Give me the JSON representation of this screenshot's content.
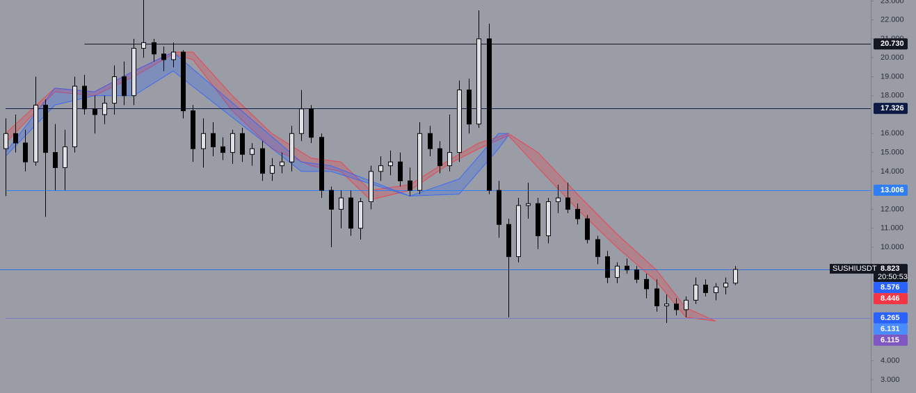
{
  "chart_data": {
    "type": "candlestick",
    "symbol": "SUSHIUSDT",
    "countdown": "20:50:53",
    "ylim": [
      2.3,
      23.05
    ],
    "yticks": [
      {
        "value": 23,
        "label": "23.000"
      },
      {
        "value": 22,
        "label": "22.000"
      },
      {
        "value": 21,
        "label": "21.000"
      },
      {
        "value": 20,
        "label": "20.000"
      },
      {
        "value": 19,
        "label": "19.000"
      },
      {
        "value": 18,
        "label": "18.000"
      },
      {
        "value": 16,
        "label": "16.000"
      },
      {
        "value": 15,
        "label": "15.000"
      },
      {
        "value": 14,
        "label": "14.000"
      },
      {
        "value": 12,
        "label": "12.000"
      },
      {
        "value": 11,
        "label": "11.000"
      },
      {
        "value": 10,
        "label": "10.000"
      },
      {
        "value": 4,
        "label": "4.000"
      },
      {
        "value": 3,
        "label": "3.000"
      }
    ],
    "up_color": "#dfe1e6",
    "down_color": "#000000",
    "candles": {
      "open": [
        15.2,
        16.0,
        15.5,
        14.5,
        17.5,
        15.0,
        14.2,
        15.3,
        18.5,
        17.3,
        17.0,
        17.6,
        19.0,
        18.0,
        20.5,
        20.8,
        20.2,
        19.9,
        20.3,
        17.2,
        15.2,
        16.0,
        15.3,
        15.0,
        16.0,
        14.9,
        15.2,
        13.9,
        14.3,
        14.5,
        16.0,
        17.3,
        15.8,
        13.0,
        12.0,
        12.6,
        11.0,
        12.4,
        14.0,
        14.3,
        14.5,
        13.5,
        13.0,
        16.0,
        15.2,
        14.3,
        15.0,
        18.3,
        16.5,
        21.0,
        13.0,
        11.2,
        9.5,
        12.2,
        12.3,
        10.6,
        12.4,
        12.6,
        12.0,
        11.5,
        10.4,
        9.5,
        8.4,
        9.0,
        8.8,
        8.3,
        7.8,
        6.9,
        7.0,
        6.7,
        7.2,
        8.0,
        7.6,
        7.9,
        8.1
      ],
      "high": [
        16.8,
        17.0,
        16.2,
        19.0,
        17.8,
        16.5,
        16.2,
        19.0,
        19.1,
        18.0,
        18.0,
        19.6,
        19.8,
        21.0,
        23.1,
        21.0,
        20.6,
        20.8,
        20.4,
        17.5,
        16.8,
        16.6,
        15.8,
        16.2,
        16.3,
        15.5,
        15.6,
        14.7,
        15.0,
        16.4,
        18.3,
        17.5,
        16.0,
        13.2,
        13.0,
        13.0,
        12.6,
        14.3,
        14.8,
        15.1,
        15.0,
        14.2,
        16.6,
        16.4,
        15.6,
        17.0,
        18.8,
        18.9,
        22.5,
        21.8,
        13.5,
        11.5,
        12.6,
        13.4,
        12.6,
        12.6,
        13.3,
        13.4,
        12.3,
        11.7,
        10.6,
        9.8,
        9.2,
        9.4,
        9.0,
        8.6,
        8.3,
        7.5,
        7.3,
        7.4,
        8.4,
        8.3,
        8.1,
        8.4,
        9.0
      ],
      "low": [
        12.7,
        15.0,
        14.0,
        14.3,
        11.6,
        13.0,
        13.0,
        15.0,
        17.0,
        16.0,
        16.5,
        17.0,
        17.5,
        17.5,
        20.0,
        19.8,
        19.3,
        19.5,
        16.8,
        14.5,
        14.2,
        14.8,
        14.6,
        14.4,
        14.5,
        14.3,
        13.5,
        13.5,
        13.9,
        14.0,
        15.6,
        15.5,
        12.6,
        10.0,
        11.0,
        10.6,
        10.4,
        12.0,
        13.5,
        13.8,
        13.2,
        12.7,
        12.8,
        14.8,
        13.9,
        14.0,
        14.5,
        16.0,
        16.3,
        12.8,
        10.5,
        6.3,
        9.2,
        11.5,
        9.9,
        10.2,
        11.8,
        11.8,
        11.2,
        10.2,
        9.1,
        8.1,
        8.1,
        8.6,
        8.1,
        7.3,
        6.6,
        6.0,
        6.4,
        6.3,
        7.0,
        7.4,
        7.2,
        7.5,
        8.0
      ],
      "close": [
        16.0,
        15.5,
        14.5,
        17.5,
        15.0,
        14.2,
        15.3,
        18.5,
        17.3,
        17.0,
        17.6,
        19.0,
        18.0,
        20.5,
        20.8,
        20.2,
        19.9,
        20.3,
        17.2,
        15.2,
        16.0,
        15.3,
        15.0,
        16.0,
        14.9,
        15.2,
        13.9,
        14.3,
        14.5,
        16.0,
        17.3,
        15.8,
        13.0,
        12.0,
        12.6,
        11.0,
        12.4,
        14.0,
        14.3,
        14.5,
        13.5,
        13.0,
        16.0,
        15.2,
        14.3,
        15.0,
        18.3,
        16.5,
        21.0,
        13.0,
        11.2,
        9.5,
        12.2,
        12.3,
        10.6,
        12.4,
        12.6,
        12.0,
        11.5,
        10.4,
        9.5,
        8.4,
        9.0,
        8.8,
        8.3,
        7.8,
        6.9,
        7.0,
        6.7,
        7.2,
        8.0,
        7.6,
        7.9,
        8.1,
        8.823
      ]
    },
    "ribbons": [
      {
        "color": "#f23645",
        "index": [
          0,
          5,
          9,
          13,
          17,
          19,
          23,
          27,
          31,
          34,
          37,
          41,
          45,
          48,
          51,
          54,
          58,
          62,
          66,
          69,
          72
        ],
        "upper": [
          16.0,
          18.4,
          18.2,
          19.3,
          20.3,
          20.3,
          18.0,
          16.0,
          14.7,
          14.5,
          13.0,
          13.3,
          14.6,
          15.5,
          16.0,
          15.0,
          12.8,
          10.7,
          8.8,
          6.8,
          6.1
        ],
        "lower": [
          15.5,
          18.2,
          18.0,
          19.0,
          20.2,
          19.9,
          17.2,
          15.2,
          14.3,
          14.0,
          12.5,
          13.0,
          14.4,
          15.2,
          15.9,
          14.2,
          12.0,
          10.0,
          8.2,
          6.3,
          6.1
        ]
      },
      {
        "color": "#2962ff",
        "index": [
          0,
          5,
          9,
          13,
          17,
          30,
          33,
          41,
          46,
          50,
          51
        ],
        "upper": [
          15.0,
          18.4,
          18.2,
          19.3,
          20.3,
          14.5,
          14.3,
          12.7,
          13.6,
          16.0,
          16.0
        ],
        "lower": [
          14.8,
          17.5,
          18.0,
          18.0,
          19.3,
          14.0,
          14.0,
          12.7,
          12.8,
          15.2,
          15.9
        ]
      }
    ],
    "levels": [
      {
        "value": 20.73,
        "label": "20.730",
        "color": "#131722",
        "from_index": 8
      },
      {
        "value": 17.326,
        "label": "17.326",
        "color": "#0d1a45",
        "from_index": 0
      },
      {
        "value": 13.006,
        "label": "13.006",
        "color": "#2f7ff2",
        "from_index": 0
      },
      {
        "value": 6.265,
        "label": "6.265",
        "color": "#7c79c9",
        "from_index": 0
      }
    ],
    "last_price": {
      "value": 8.823,
      "label": "8.823",
      "color": "#2f6fe0"
    },
    "markers": [
      {
        "value": 8.576,
        "label": "8.576",
        "color": "#2962ff"
      },
      {
        "value": 8.446,
        "label": "8.446",
        "color": "#f23645"
      },
      {
        "value": 6.265,
        "label": "6.265",
        "color": "#2962ff"
      },
      {
        "value": 6.131,
        "label": "6.131",
        "color": "#4a8cff"
      },
      {
        "value": 6.115,
        "label": "6.115",
        "color": "#7e57c2"
      }
    ]
  }
}
